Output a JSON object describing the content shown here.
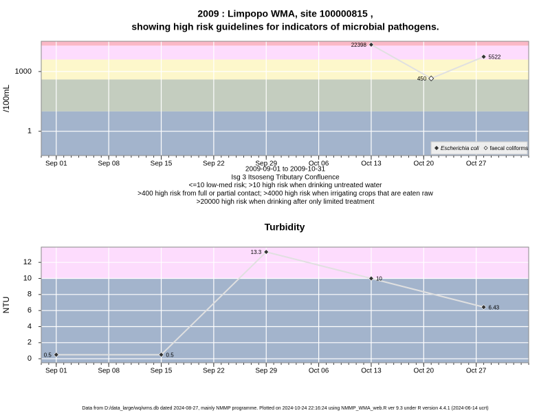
{
  "title": [
    "2009 : Limpopo WMA, site 100000815 ,",
    "showing high risk guidelines for indicators of microbial pathogens."
  ],
  "footer": "Data from D:/data_large/wq/wms.db dated 2024-08-27, mainly NMMP programme. Plotted on 2024-10-24 22:16:24 using NMMP_WMA_web.R ver 9.3 under R version 4.4.1 (2024-06-14 ucrt)",
  "chart_data": [
    {
      "type": "scatter",
      "ylabel": "/100mL",
      "log_y": true,
      "xlim": [
        "Aug 30",
        "Nov 03"
      ],
      "xticks": [
        "Sep 01",
        "Sep 08",
        "Sep 15",
        "Sep 22",
        "Sep 29",
        "Oct 06",
        "Oct 13",
        "Oct 20",
        "Oct 27"
      ],
      "ylim": [
        0.06,
        33000
      ],
      "yticks": [
        1,
        1000
      ],
      "grid": true,
      "band_limits": [
        10,
        400,
        4000,
        20000
      ],
      "band_colors": [
        "#a3b4cc",
        "#c4cdbf",
        "#fdf7cb",
        "#fddcfd",
        "#fbb8c7"
      ],
      "line_color": "#e0e0e0",
      "series": [
        {
          "name": "Escherichia coli",
          "color": "#333333",
          "filled": true,
          "x": [
            "Oct 13",
            "Oct 28"
          ],
          "values": [
            22398,
            5522
          ]
        },
        {
          "name": "faecal coliforms",
          "color": "#333333",
          "filled": false,
          "x": [
            "Oct 21"
          ],
          "values": [
            450
          ]
        }
      ],
      "legend": "bottom right",
      "notes": [
        "2009-09-01 to 2009-10-31",
        "Isg 3 Itsoseng Tributary Confluence",
        "<=10 low-med risk; >10 high risk when drinking untreated water",
        ">400 high risk from full or partial contact; >4000 high risk when irrigating crops that are eaten raw",
        ">20000 high risk when drinking after only limited treatment"
      ]
    },
    {
      "type": "scatter",
      "title": "Turbidity",
      "ylabel": "NTU",
      "log_y": false,
      "xlim": [
        "Aug 30",
        "Nov 03"
      ],
      "xticks": [
        "Sep 01",
        "Sep 08",
        "Sep 15",
        "Sep 22",
        "Sep 29",
        "Oct 06",
        "Oct 13",
        "Oct 20",
        "Oct 27"
      ],
      "ylim": [
        -0.5,
        13.9
      ],
      "yticks": [
        0,
        2,
        4,
        6,
        8,
        10,
        12
      ],
      "grid": true,
      "band_limits": [
        10
      ],
      "band_colors": [
        "#a3b4cc",
        "#fddcfd"
      ],
      "line_color": "#e0e0e0",
      "series": [
        {
          "color": "#333333",
          "filled": true,
          "x": [
            "Sep 01",
            "Sep 15",
            "Sep 29",
            "Oct 13",
            "Oct 28"
          ],
          "values": [
            0.5,
            0.5,
            13.3,
            10,
            6.43
          ]
        }
      ]
    }
  ]
}
